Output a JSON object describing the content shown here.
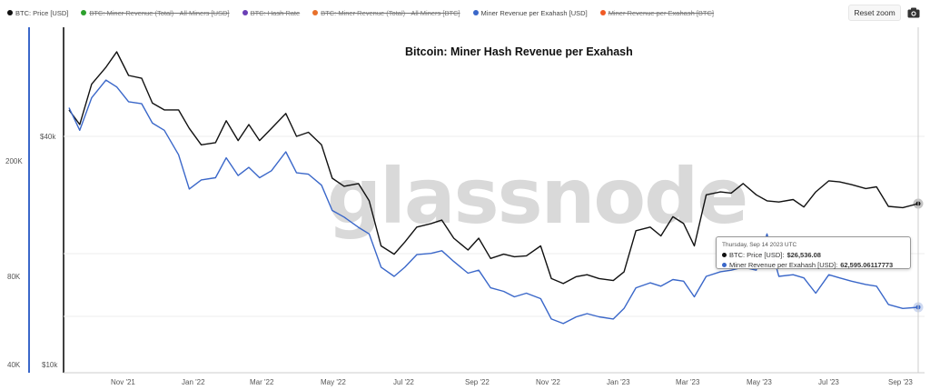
{
  "legend": [
    {
      "label": "BTC: Price [USD]",
      "color": "#111111",
      "visible": true
    },
    {
      "label": "BTC: Miner Revenue (Total) - All Miners [USD]",
      "color": "#2ca02c",
      "visible": false
    },
    {
      "label": "BTC: Hash Rate",
      "color": "#6a3fb5",
      "visible": false
    },
    {
      "label": "BTC: Miner Revenue (Total) - All Miners [BTC]",
      "color": "#e8702a",
      "visible": false
    },
    {
      "label": "Miner Revenue per Exahash [USD]",
      "color": "#3a67c9",
      "visible": true
    },
    {
      "label": "Miner Revenue per Exahash [BTC]",
      "color": "#f05a24",
      "visible": false
    }
  ],
  "toolbar": {
    "reset_label": "Reset zoom",
    "camera_icon": "camera-icon"
  },
  "watermark": "glassnode",
  "tooltip": {
    "date": "Thursday, Sep 14 2023 UTC",
    "price_label": "BTC: Price [USD]:",
    "price_value": "$26,536.08",
    "rev_label": "Miner Revenue per Exahash [USD]:",
    "rev_value": "62,595.06117773"
  },
  "chart_data": {
    "type": "line",
    "title": "Bitcoin: Miner Hash Revenue per Exahash",
    "x_labels": [
      "Nov '21",
      "Jan '22",
      "Mar '22",
      "May '22",
      "Jul '22",
      "Sep '22",
      "Nov '22",
      "Jan '23",
      "Mar '23",
      "May '23",
      "Jul '23",
      "Sep '23"
    ],
    "left_axis_ticks": [
      "200K",
      "80K",
      "40K"
    ],
    "right_axis_ticks": [
      "$40k",
      "$10k"
    ],
    "right_axis_scale": "log",
    "left_axis_scale": "log",
    "colors": {
      "price": "#111111",
      "revenue": "#3a67c9"
    },
    "series": [
      {
        "name": "BTC: Price [USD]",
        "axis": "right",
        "x": [
          "2021-10-01",
          "2021-10-10",
          "2021-10-20",
          "2021-11-01",
          "2021-11-10",
          "2021-11-20",
          "2021-12-01",
          "2021-12-10",
          "2021-12-20",
          "2022-01-01",
          "2022-01-10",
          "2022-01-20",
          "2022-02-01",
          "2022-02-10",
          "2022-02-20",
          "2022-03-01",
          "2022-03-10",
          "2022-03-20",
          "2022-04-01",
          "2022-04-10",
          "2022-04-20",
          "2022-05-01",
          "2022-05-10",
          "2022-05-20",
          "2022-06-01",
          "2022-06-10",
          "2022-06-20",
          "2022-07-01",
          "2022-07-10",
          "2022-07-20",
          "2022-08-01",
          "2022-08-10",
          "2022-08-20",
          "2022-09-01",
          "2022-09-10",
          "2022-09-20",
          "2022-10-01",
          "2022-10-10",
          "2022-10-20",
          "2022-11-01",
          "2022-11-10",
          "2022-11-20",
          "2022-12-01",
          "2022-12-10",
          "2022-12-20",
          "2023-01-01",
          "2023-01-10",
          "2023-01-20",
          "2023-02-01",
          "2023-02-10",
          "2023-02-20",
          "2023-03-01",
          "2023-03-10",
          "2023-03-20",
          "2023-04-01",
          "2023-04-10",
          "2023-04-20",
          "2023-05-01",
          "2023-05-10",
          "2023-05-20",
          "2023-06-01",
          "2023-06-10",
          "2023-06-20",
          "2023-07-01",
          "2023-07-10",
          "2023-07-20",
          "2023-08-01",
          "2023-08-10",
          "2023-08-20",
          "2023-09-01",
          "2023-09-14"
        ],
        "values": [
          47000,
          43000,
          55000,
          61000,
          67000,
          58000,
          57000,
          49000,
          47000,
          47000,
          42000,
          38000,
          38500,
          44000,
          39000,
          43000,
          39000,
          42000,
          46000,
          40000,
          41000,
          38000,
          31000,
          29500,
          30000,
          27000,
          20500,
          19500,
          21000,
          23000,
          23500,
          24000,
          21500,
          20000,
          21500,
          19000,
          19500,
          19200,
          19300,
          20500,
          16800,
          16300,
          17000,
          17200,
          16800,
          16600,
          17500,
          22500,
          23000,
          21800,
          24500,
          23500,
          20500,
          28000,
          28500,
          28300,
          30000,
          28000,
          27000,
          26800,
          27200,
          26000,
          28500,
          30500,
          30300,
          29800,
          29100,
          29400,
          26100,
          25900,
          26536
        ]
      },
      {
        "name": "Miner Revenue per Exahash [USD]",
        "axis": "left",
        "x": [
          "2021-10-01",
          "2021-10-10",
          "2021-10-20",
          "2021-11-01",
          "2021-11-10",
          "2021-11-20",
          "2021-12-01",
          "2021-12-10",
          "2021-12-20",
          "2022-01-01",
          "2022-01-10",
          "2022-01-20",
          "2022-02-01",
          "2022-02-10",
          "2022-02-20",
          "2022-03-01",
          "2022-03-10",
          "2022-03-20",
          "2022-04-01",
          "2022-04-10",
          "2022-04-20",
          "2022-05-01",
          "2022-05-10",
          "2022-05-20",
          "2022-06-01",
          "2022-06-10",
          "2022-06-20",
          "2022-07-01",
          "2022-07-10",
          "2022-07-20",
          "2022-08-01",
          "2022-08-10",
          "2022-08-20",
          "2022-09-01",
          "2022-09-10",
          "2022-09-20",
          "2022-10-01",
          "2022-10-10",
          "2022-10-20",
          "2022-11-01",
          "2022-11-10",
          "2022-11-20",
          "2022-12-01",
          "2022-12-10",
          "2022-12-20",
          "2023-01-01",
          "2023-01-10",
          "2023-01-20",
          "2023-02-01",
          "2023-02-10",
          "2023-02-20",
          "2023-03-01",
          "2023-03-10",
          "2023-03-20",
          "2023-04-01",
          "2023-04-10",
          "2023-04-20",
          "2023-05-01",
          "2023-05-10",
          "2023-05-20",
          "2023-06-01",
          "2023-06-10",
          "2023-06-20",
          "2023-07-01",
          "2023-07-10",
          "2023-07-20",
          "2023-08-01",
          "2023-08-10",
          "2023-08-20",
          "2023-09-01",
          "2023-09-14"
        ],
        "values": [
          305000,
          255000,
          330000,
          380000,
          360000,
          320000,
          315000,
          270000,
          255000,
          210000,
          160000,
          172000,
          175000,
          205000,
          178000,
          190000,
          175000,
          185000,
          215000,
          182000,
          180000,
          165000,
          135000,
          128000,
          118000,
          112000,
          86000,
          80000,
          86000,
          95000,
          96000,
          98000,
          90000,
          82000,
          84000,
          73000,
          71000,
          68000,
          70000,
          67000,
          57000,
          55000,
          58000,
          59500,
          58000,
          57000,
          62000,
          73000,
          76000,
          74000,
          78000,
          77000,
          68000,
          80000,
          83000,
          84000,
          86000,
          84000,
          112000,
          80000,
          81000,
          79000,
          70000,
          81000,
          79000,
          77000,
          75000,
          74000,
          64000,
          62000,
          62595
        ]
      }
    ]
  }
}
